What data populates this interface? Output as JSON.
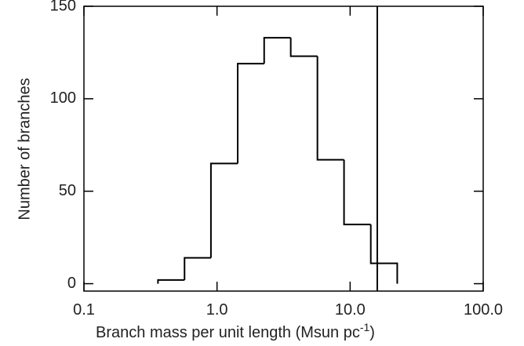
{
  "chart_data": {
    "type": "histogram",
    "x_label": {
      "text": "Branch mass per unit length (Msun pc",
      "superscript": "-1",
      "suffix": ")"
    },
    "y_label": "Number of branches",
    "bins": [
      0.36,
      0.57,
      0.9,
      1.43,
      2.26,
      3.58,
      5.68,
      9.0,
      14.3,
      22.6
    ],
    "values": [
      2,
      14,
      65,
      119,
      133,
      123,
      67,
      32,
      11
    ],
    "xlim": [
      0.1,
      100
    ],
    "xlog": true,
    "xticks": [
      {
        "value": 0.1,
        "label": "0.1"
      },
      {
        "value": 1,
        "label": "1.0"
      },
      {
        "value": 10,
        "label": "10.0"
      },
      {
        "value": 100,
        "label": "100.0"
      }
    ],
    "ylim": [
      -4,
      150
    ],
    "yticks": [
      0,
      50,
      100,
      150
    ],
    "vline": 16,
    "color": "#000000"
  }
}
